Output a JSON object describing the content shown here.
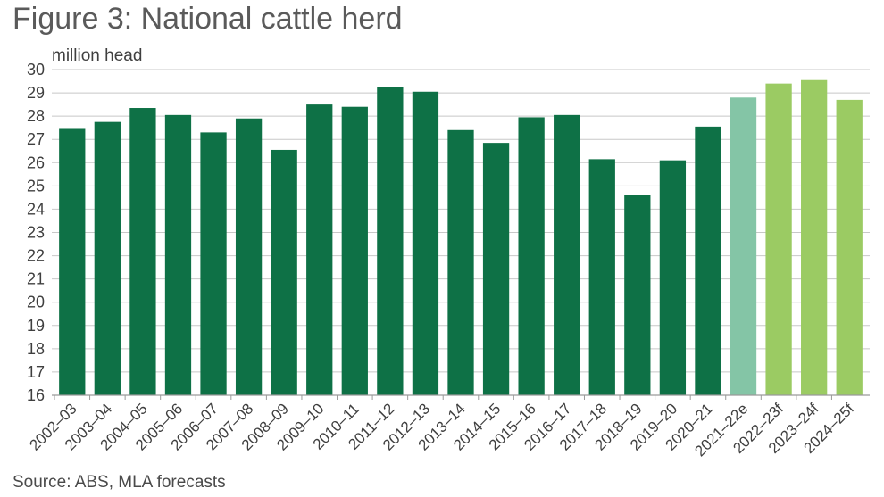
{
  "title": "Figure 3: National cattle herd",
  "source": "Source: ABS, MLA forecasts",
  "colors": {
    "actual": "#0e7146",
    "estimate": "#84c5a6",
    "forecast": "#9bcb63",
    "gridline": "#c8c8c8",
    "axis": "#9a9a9a",
    "text": "#3f3f3f"
  },
  "chart_data": {
    "type": "bar",
    "ylabel": "million head",
    "xlabel": "",
    "ylim": [
      16,
      30
    ],
    "yticks": [
      16,
      17,
      18,
      19,
      20,
      21,
      22,
      23,
      24,
      25,
      26,
      27,
      28,
      29,
      30
    ],
    "grid": true,
    "categories": [
      "2002–03",
      "2003–04",
      "2004–05",
      "2005–06",
      "2006–07",
      "2007–08",
      "2008–09",
      "2009–10",
      "2010–11",
      "2011–12",
      "2012–13",
      "2013–14",
      "2014–15",
      "2015–16",
      "2016–17",
      "2017–18",
      "2018–19",
      "2019–20",
      "2020–21",
      "2021–22e",
      "2022–23f",
      "2023–24f",
      "2024–25f"
    ],
    "values": [
      27.45,
      27.75,
      28.35,
      28.05,
      27.3,
      27.9,
      26.55,
      28.5,
      28.4,
      29.25,
      29.05,
      27.4,
      26.85,
      27.95,
      28.05,
      26.15,
      24.6,
      26.1,
      27.55,
      28.8,
      29.4,
      29.55,
      28.7
    ],
    "bar_types": [
      "actual",
      "actual",
      "actual",
      "actual",
      "actual",
      "actual",
      "actual",
      "actual",
      "actual",
      "actual",
      "actual",
      "actual",
      "actual",
      "actual",
      "actual",
      "actual",
      "actual",
      "actual",
      "actual",
      "estimate",
      "forecast",
      "forecast",
      "forecast"
    ]
  }
}
